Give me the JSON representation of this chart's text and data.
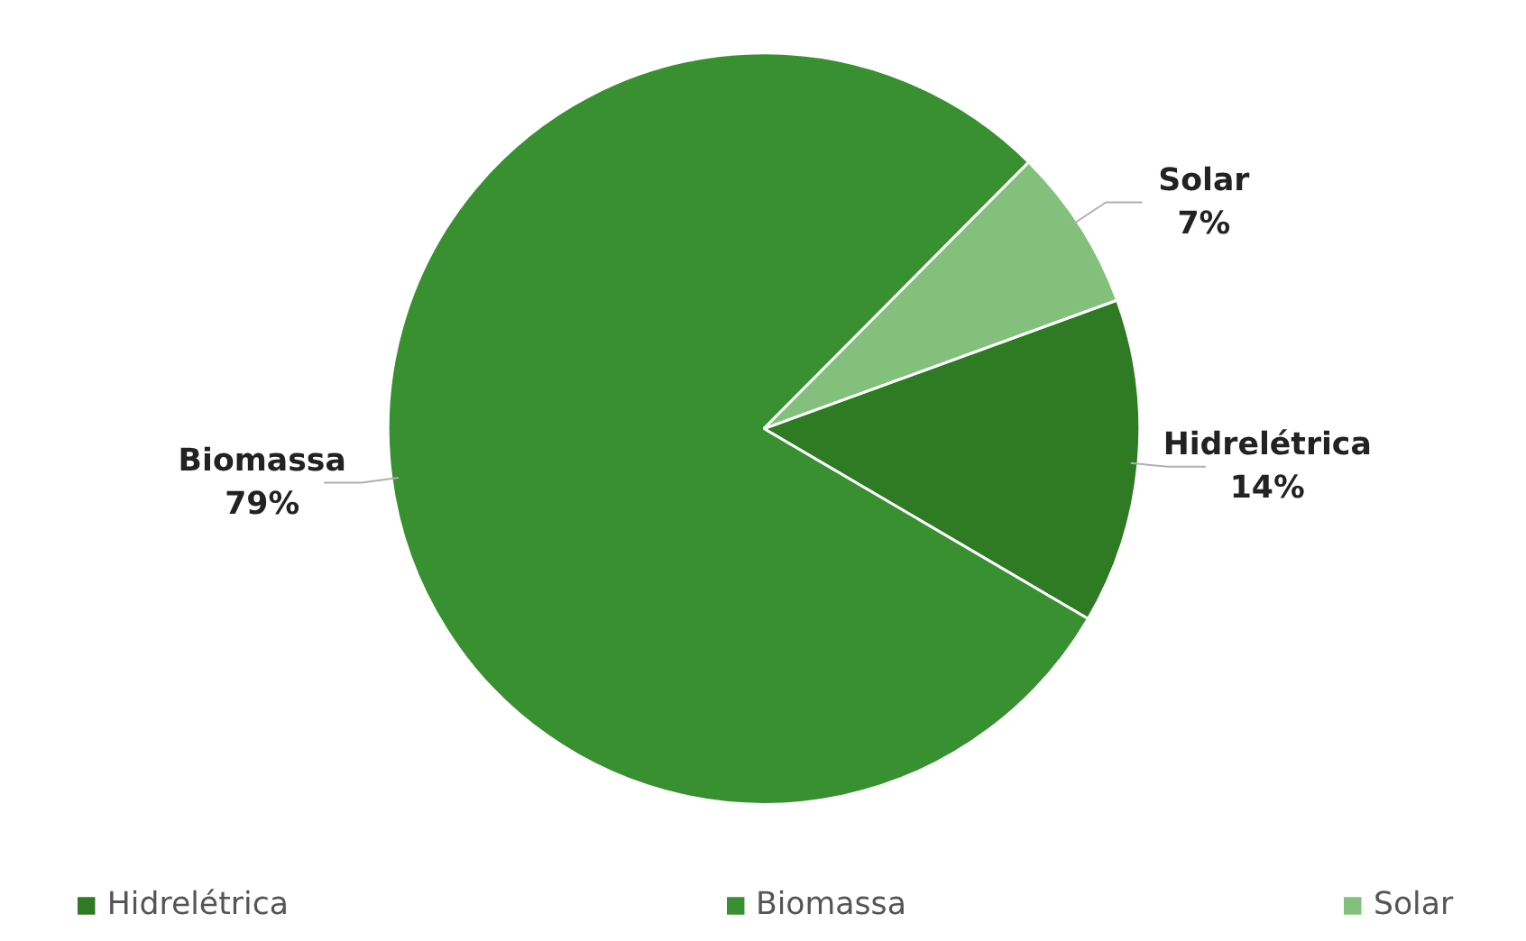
{
  "chart_data": {
    "type": "pie",
    "categories": [
      "Hidrelétrica",
      "Biomassa",
      "Solar"
    ],
    "values": [
      14,
      79,
      7
    ],
    "value_labels": [
      "14%",
      "79%",
      "7%"
    ],
    "colors": [
      "#2e7b24",
      "#389030",
      "#82c07c"
    ],
    "legend": "bottom"
  }
}
